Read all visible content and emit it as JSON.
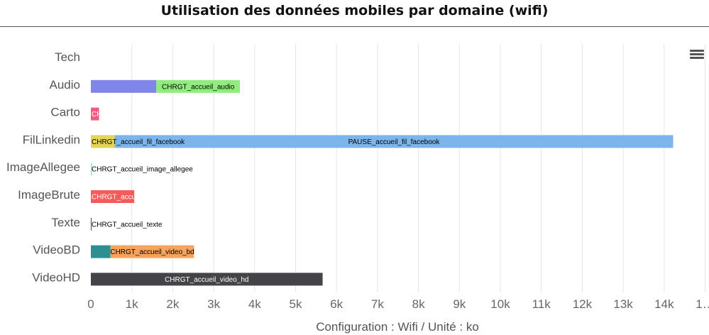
{
  "header": {
    "title": "Utilisation des données mobiles par domaine (wifi)"
  },
  "toolbar": {
    "menu_icon": "hamburger-menu-icon"
  },
  "chart_data": {
    "type": "bar",
    "orientation": "horizontal",
    "stacked": true,
    "title": "Utilisation des données mobiles par domaine (wifi)",
    "xlabel": "Configuration : Wifi / Unité : ko",
    "ylabel": "",
    "xlim": [
      0,
      14800
    ],
    "x_ticks": [
      "0",
      "1k",
      "2k",
      "3k",
      "4k",
      "5k",
      "6k",
      "7k",
      "8k",
      "9k",
      "10k",
      "11k",
      "12k",
      "13k",
      "14k",
      "1…"
    ],
    "grid": true,
    "categories": [
      "Tech",
      "Audio",
      "Carto",
      "FilLinkedin",
      "ImageAllegee",
      "ImageBrute",
      "Texte",
      "VideoBD",
      "VideoHD"
    ],
    "series": [
      {
        "category": "Audio",
        "color": "#8085e9",
        "values": [
          0,
          1600,
          0,
          0,
          0,
          0,
          0,
          0,
          0
        ]
      },
      {
        "category": "Audio",
        "name": "CHRGT_accueil_audio",
        "color": "#90ed7d",
        "values": [
          0,
          2040,
          0,
          0,
          0,
          0,
          0,
          0,
          0
        ]
      },
      {
        "category": "Carto",
        "name": "CHRGT_accueil_carto",
        "color": "#f15c80",
        "values": [
          0,
          0,
          200,
          0,
          0,
          0,
          0,
          0,
          0
        ]
      },
      {
        "name": "CHRGT_accueil_fil_facebook",
        "color": "#e4d354",
        "values": [
          0,
          0,
          0,
          580,
          0,
          0,
          0,
          0,
          0
        ]
      },
      {
        "name": "PAUSE_accueil_fil_facebook",
        "color": "#7cb5ec",
        "values": [
          0,
          0,
          0,
          13640,
          0,
          0,
          0,
          0,
          0
        ]
      },
      {
        "name": "CHRGT_accueil_image_allegee",
        "color": "#91e8e1",
        "values": [
          0,
          0,
          0,
          0,
          30,
          0,
          0,
          0,
          0
        ]
      },
      {
        "name": "CHRGT_accueil_image_brute",
        "color": "#f45b5b",
        "values": [
          0,
          0,
          0,
          0,
          0,
          1060,
          0,
          0,
          0
        ]
      },
      {
        "name": "CHRGT_accueil_texte",
        "color": "#434348",
        "values": [
          0,
          0,
          0,
          0,
          0,
          0,
          5,
          0,
          0
        ]
      },
      {
        "category": "VideoBD",
        "color": "#2b908f",
        "values": [
          0,
          0,
          0,
          0,
          0,
          0,
          0,
          480,
          0
        ]
      },
      {
        "name": "CHRGT_accueil_video_bd",
        "color": "#f7a35c",
        "values": [
          0,
          0,
          0,
          0,
          0,
          0,
          0,
          2040,
          0
        ]
      },
      {
        "name": "CHRGT_accueil_video_hd",
        "color": "#434348",
        "values": [
          0,
          0,
          0,
          0,
          0,
          0,
          0,
          0,
          5660
        ]
      }
    ],
    "segment_labels": [
      {
        "category": "Audio",
        "text": "CHRGT_accueil_audio",
        "series": 1,
        "clip": false,
        "light": false
      },
      {
        "category": "Carto",
        "text": "CH",
        "series": 2,
        "clip": true,
        "light": true
      },
      {
        "category": "FilLinkedin",
        "text": "CHRGT_accueil_fil_facebook",
        "series": 3,
        "clip": false,
        "light": false
      },
      {
        "category": "FilLinkedin",
        "text": "PAUSE_accueil_fil_facebook",
        "series": 4,
        "clip": false,
        "light": false
      },
      {
        "category": "ImageAllegee",
        "text": "CHRGT_accueil_image_allegee",
        "series": 5,
        "clip": false,
        "light": false
      },
      {
        "category": "ImageBrute",
        "text": "CHRGT_accu",
        "series": 6,
        "clip": true,
        "light": true
      },
      {
        "category": "Texte",
        "text": "CHRGT_accueil_texte",
        "series": 7,
        "clip": false,
        "light": false
      },
      {
        "category": "VideoBD",
        "text": "CHRGT_accueil_video_bd",
        "series": 9,
        "clip": false,
        "light": false
      },
      {
        "category": "VideoHD",
        "text": "CHRGT_accueil_video_hd",
        "series": 10,
        "clip": false,
        "light": true
      }
    ]
  }
}
